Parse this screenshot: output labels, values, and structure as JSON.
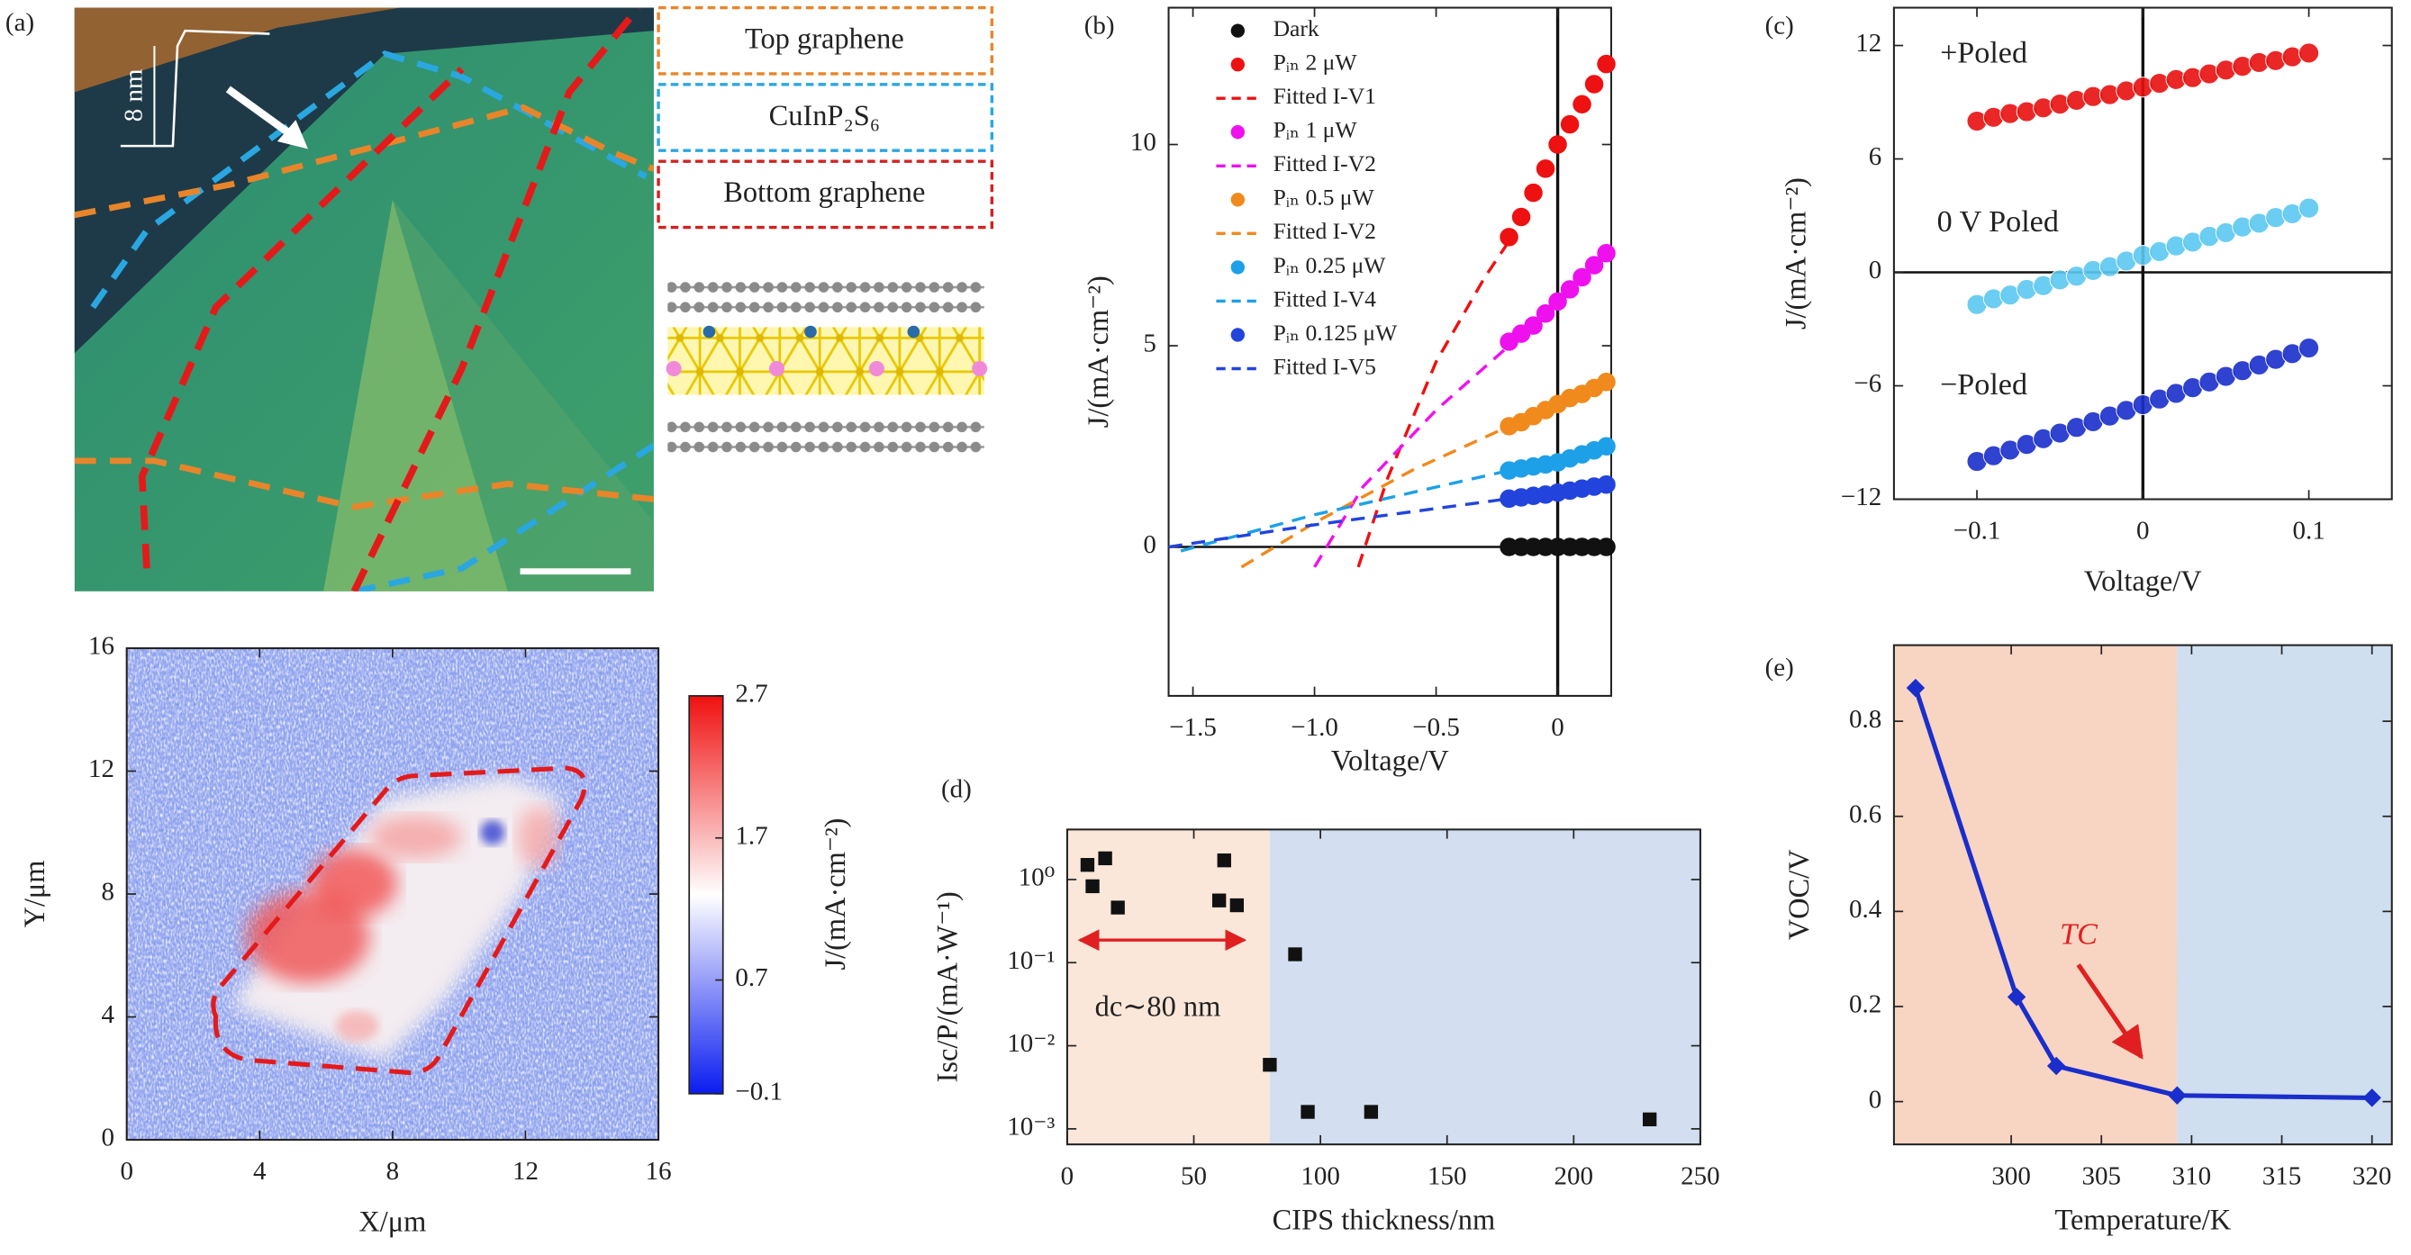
{
  "panel_a": {
    "label": "(a)",
    "height_label": "8 nm",
    "legend": [
      "Top graphene",
      "CuInP₂S₆",
      "Bottom graphene"
    ]
  },
  "chart_data": [
    {
      "type": "heatmap",
      "xlabel": "X/μm",
      "ylabel": "Y/μm",
      "xlim": [
        0,
        16
      ],
      "ylim": [
        0,
        16
      ],
      "xticks": [
        0,
        4,
        8,
        12,
        16
      ],
      "yticks": [
        0,
        4,
        8,
        12,
        16
      ],
      "colorbar": {
        "label": "J/(mA·cm⁻²)",
        "lim": [
          -0.1,
          2.7
        ],
        "ticks": [
          2.7,
          1.7,
          0.7,
          {
            "value": -0.1,
            "label": "−0.1"
          }
        ],
        "colors": [
          "#0a1cf0",
          "#ffffff",
          "#f01010"
        ]
      }
    },
    {
      "type": "line",
      "label": "(b)",
      "xlabel": "Voltage/V",
      "ylabel": "J/(mA·cm⁻²)",
      "xlim": [
        -1.6,
        0.22
      ],
      "ylim": [
        -3.7,
        13.4
      ],
      "xticks": [
        {
          "value": -1.5,
          "label": "−1.5"
        },
        {
          "value": -1,
          "label": "−1.0"
        },
        {
          "value": -0.5,
          "label": "−0.5"
        },
        0
      ],
      "yticks": [
        0,
        5,
        10
      ],
      "zero_lines": true,
      "legend": "upper left",
      "series": [
        {
          "name": "Dark",
          "color": "#111111",
          "style": "scatter",
          "x": [
            -0.2,
            -0.15,
            -0.1,
            -0.05,
            0,
            0.05,
            0.1,
            0.15,
            0.2
          ],
          "values": [
            0,
            0,
            0,
            0,
            0,
            0,
            0,
            0,
            0
          ]
        },
        {
          "name": "Pᵢₙ 2 μW",
          "color": "#ee1111",
          "style": "scatter",
          "x": [
            -0.2,
            -0.15,
            -0.1,
            -0.05,
            0,
            0.05,
            0.1,
            0.15,
            0.2
          ],
          "values": [
            7.7,
            8.2,
            8.8,
            9.4,
            10.0,
            10.5,
            11.0,
            11.5,
            12.0
          ]
        },
        {
          "name": "Fitted I-V1",
          "color": "#ee1111",
          "style": "dashed",
          "x": [
            -0.82,
            -0.7,
            -0.5,
            -0.3,
            -0.2
          ],
          "values": [
            -0.5,
            1.7,
            4.6,
            6.7,
            7.6
          ]
        },
        {
          "name": "Pᵢₙ 1 μW",
          "color": "#ee11ee",
          "style": "scatter",
          "x": [
            -0.2,
            -0.15,
            -0.1,
            -0.05,
            0,
            0.05,
            0.1,
            0.15,
            0.2
          ],
          "values": [
            5.1,
            5.3,
            5.5,
            5.8,
            6.1,
            6.4,
            6.7,
            7.0,
            7.3
          ]
        },
        {
          "name": "Fitted I-V2",
          "color": "#ee11ee",
          "style": "dashed",
          "x": [
            -1.0,
            -0.8,
            -0.5,
            -0.2
          ],
          "values": [
            -0.5,
            1.5,
            3.4,
            5.0
          ]
        },
        {
          "name": "Pᵢₙ 0.5 μW",
          "color": "#f08a1c",
          "style": "scatter",
          "x": [
            -0.2,
            -0.15,
            -0.1,
            -0.05,
            0,
            0.05,
            0.1,
            0.15,
            0.2
          ],
          "values": [
            3.0,
            3.1,
            3.25,
            3.4,
            3.55,
            3.7,
            3.8,
            3.95,
            4.1
          ]
        },
        {
          "name": "Fitted I-V2",
          "color": "#f08a1c",
          "style": "dashed",
          "x": [
            -1.3,
            -1.0,
            -0.6,
            -0.2
          ],
          "values": [
            -0.5,
            0.6,
            1.9,
            3.0
          ]
        },
        {
          "name": "Pᵢₙ 0.25 μW",
          "color": "#1ea0e8",
          "style": "scatter",
          "x": [
            -0.2,
            -0.15,
            -0.1,
            -0.05,
            0,
            0.05,
            0.1,
            0.15,
            0.2
          ],
          "values": [
            1.9,
            1.95,
            2.0,
            2.05,
            2.1,
            2.2,
            2.3,
            2.4,
            2.5
          ]
        },
        {
          "name": "Fitted I-V4",
          "color": "#1ea0e8",
          "style": "dashed",
          "x": [
            -1.55,
            -1.0,
            -0.2
          ],
          "values": [
            -0.1,
            0.8,
            1.9
          ]
        },
        {
          "name": "Pᵢₙ 0.125 μW",
          "color": "#2244dd",
          "style": "scatter",
          "x": [
            -0.2,
            -0.15,
            -0.1,
            -0.05,
            0,
            0.05,
            0.1,
            0.15,
            0.2
          ],
          "values": [
            1.2,
            1.23,
            1.27,
            1.3,
            1.35,
            1.4,
            1.45,
            1.5,
            1.55
          ]
        },
        {
          "name": "Fitted I-V5",
          "color": "#2244dd",
          "style": "dashed",
          "x": [
            -1.6,
            -1.0,
            -0.2
          ],
          "values": [
            0.0,
            0.55,
            1.2
          ]
        }
      ]
    },
    {
      "type": "scatter",
      "label": "(c)",
      "xlabel": "Voltage/V",
      "ylabel": "J/(mA·cm⁻²)",
      "xlim": [
        -0.15,
        0.15
      ],
      "ylim": [
        -12,
        14
      ],
      "xticks": [
        {
          "value": -0.1,
          "label": "−0.1"
        },
        0,
        0.1
      ],
      "yticks": [
        {
          "value": -12,
          "label": "−12"
        },
        {
          "value": -6,
          "label": "−6"
        },
        0,
        6,
        12
      ],
      "zero_lines": true,
      "x": [
        -0.1,
        -0.09,
        -0.08,
        -0.07,
        -0.06,
        -0.05,
        -0.04,
        -0.03,
        -0.02,
        -0.01,
        0,
        0.01,
        0.02,
        0.03,
        0.04,
        0.05,
        0.06,
        0.07,
        0.08,
        0.09,
        0.1
      ],
      "series": [
        {
          "name": "+Poled",
          "color": "#e81010",
          "values": [
            8.0,
            8.2,
            8.4,
            8.5,
            8.7,
            8.9,
            9.1,
            9.3,
            9.4,
            9.6,
            9.8,
            10.0,
            10.2,
            10.3,
            10.5,
            10.7,
            10.9,
            11.1,
            11.2,
            11.4,
            11.6
          ]
        },
        {
          "name": "0 V Poled",
          "color": "#5cc8f0",
          "values": [
            -1.7,
            -1.4,
            -1.2,
            -0.9,
            -0.7,
            -0.4,
            -0.2,
            0.1,
            0.3,
            0.6,
            0.9,
            1.1,
            1.4,
            1.6,
            1.9,
            2.1,
            2.4,
            2.6,
            2.9,
            3.1,
            3.4
          ]
        },
        {
          "name": "−Poled",
          "color": "#1a2ecc",
          "values": [
            -10.0,
            -9.7,
            -9.4,
            -9.1,
            -8.8,
            -8.5,
            -8.2,
            -7.9,
            -7.6,
            -7.3,
            -7.0,
            -6.7,
            -6.4,
            -6.1,
            -5.8,
            -5.5,
            -5.2,
            -4.9,
            -4.6,
            -4.3,
            -4.0
          ]
        }
      ]
    },
    {
      "type": "scatter",
      "label": "(d)",
      "xlabel": "CIPS thickness/nm",
      "ylabel": "Isc/P/(mA·W⁻¹)",
      "xlim": [
        0,
        250
      ],
      "ylim": [
        0.00065,
        4
      ],
      "log_y": true,
      "xticks": [
        0,
        50,
        100,
        150,
        200,
        250
      ],
      "yticks": [
        {
          "value": 1,
          "label": "10⁰"
        },
        {
          "value": 0.1,
          "label": "10⁻¹"
        },
        {
          "value": 0.01,
          "label": "10⁻²"
        },
        {
          "value": 0.001,
          "label": "10⁻³"
        }
      ],
      "regions": [
        {
          "range": [
            0,
            80
          ],
          "color": "#fbe7da"
        },
        {
          "range": [
            80,
            250
          ],
          "color": "#d3dff0"
        }
      ],
      "annotation": "dc∼80 nm",
      "arrow_x": [
        5,
        70
      ],
      "x": [
        8,
        10,
        15,
        20,
        60,
        62,
        67,
        90,
        80,
        95,
        120,
        230
      ],
      "series": [
        {
          "color": "#111111",
          "values": [
            1.5,
            0.83,
            1.8,
            0.46,
            0.56,
            1.7,
            0.49,
            0.126,
            0.0059,
            0.0016,
            0.0016,
            0.0013
          ]
        }
      ]
    },
    {
      "type": "line",
      "label": "(e)",
      "xlabel": "Temperature/K",
      "ylabel": "VOC/V",
      "xlim": [
        293.5,
        321.1
      ],
      "ylim": [
        -0.09,
        0.96
      ],
      "xticks": [
        300,
        305,
        310,
        315,
        320
      ],
      "yticks": [
        0,
        0.2,
        0.4,
        0.6,
        0.8
      ],
      "regions": [
        {
          "range": [
            293.5,
            309.2
          ],
          "color": "#f8d5c2"
        },
        {
          "range": [
            309.2,
            321.1
          ],
          "color": "#cfdff0"
        }
      ],
      "annotation": "TC",
      "x": [
        294.7,
        300.3,
        302.5,
        309.2,
        320
      ],
      "series": [
        {
          "color": "#1a2ecc",
          "style": "line_markers",
          "values": [
            0.87,
            0.22,
            0.075,
            0.013,
            0.008
          ]
        }
      ]
    }
  ]
}
